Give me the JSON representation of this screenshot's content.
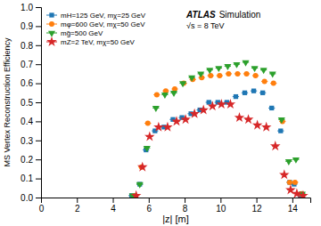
{
  "chart_data": {
    "type": "scatter",
    "xlabel": "|z| [m]",
    "ylabel": "MS Vertex Reconstruction Efficiency",
    "xlim": [
      0,
      15
    ],
    "ylim": [
      0,
      1
    ],
    "xticks": [
      0,
      2,
      4,
      6,
      8,
      10,
      12,
      14
    ],
    "yticks": [
      {
        "value": 0,
        "label": "0.0"
      },
      0.1,
      0.2,
      0.3,
      0.4,
      0.5,
      0.6,
      0.7,
      0.8,
      0.9,
      {
        "value": 1,
        "label": "1.0"
      }
    ],
    "xerr": 0.18,
    "legend": "upper left",
    "grid": false,
    "annotations": [
      "ATLAS",
      "Simulation",
      "√s = 8 TeV"
    ],
    "series": [
      {
        "name": "mH=125 GeV, mχ=25 GeV",
        "marker": "square",
        "x": [
          5.05,
          5.5,
          5.85,
          6.35,
          6.85,
          7.35,
          7.85,
          8.35,
          8.85,
          9.35,
          9.85,
          10.35,
          10.85,
          11.35,
          11.85,
          12.35,
          12.85,
          13.35,
          13.85,
          14.1,
          14.45
        ],
        "values": [
          0.01,
          0.07,
          0.25,
          0.35,
          0.37,
          0.41,
          0.42,
          0.44,
          0.46,
          0.5,
          0.5,
          0.5,
          0.53,
          0.55,
          0.56,
          0.55,
          0.47,
          0.35,
          0.08,
          0.07,
          0.01
        ]
      },
      {
        "name": "mφ=600 GeV, mχ=50 GeV",
        "marker": "circle",
        "x": [
          5.2,
          5.6,
          5.95,
          6.45,
          6.95,
          7.45,
          7.95,
          8.45,
          8.95,
          9.45,
          9.95,
          10.45,
          10.95,
          11.45,
          11.95,
          12.45,
          12.95,
          13.45,
          13.85,
          14.15,
          14.5
        ],
        "values": [
          0.01,
          0.16,
          0.39,
          0.54,
          0.56,
          0.57,
          0.6,
          0.62,
          0.63,
          0.64,
          0.64,
          0.65,
          0.65,
          0.65,
          0.64,
          0.61,
          0.6,
          0.4,
          0.08,
          0.08,
          0.02
        ]
      },
      {
        "name": "mg̃=500 GeV",
        "marker": "triangle-down",
        "x": [
          5.1,
          5.5,
          5.9,
          6.4,
          6.9,
          7.4,
          7.9,
          8.4,
          8.9,
          9.4,
          9.9,
          10.4,
          10.9,
          11.4,
          11.9,
          12.4,
          12.9,
          13.4,
          13.8,
          14.2,
          14.55
        ],
        "values": [
          0.01,
          0.07,
          0.26,
          0.47,
          0.54,
          0.55,
          0.6,
          0.63,
          0.65,
          0.67,
          0.68,
          0.69,
          0.7,
          0.71,
          0.68,
          0.67,
          0.65,
          0.41,
          0.19,
          0.2,
          0.02
        ]
      },
      {
        "name": "mZ=2 TeV, mχ=50 GeV",
        "marker": "star",
        "x": [
          5.3,
          5.65,
          6.05,
          6.55,
          7.05,
          7.55,
          8.05,
          8.55,
          9.05,
          9.55,
          10.05,
          10.55,
          11.05,
          11.55,
          12.05,
          12.55,
          13.05,
          13.55,
          13.9,
          14.25,
          14.6
        ],
        "values": [
          0.01,
          0.16,
          0.32,
          0.37,
          0.37,
          0.4,
          0.41,
          0.44,
          0.46,
          0.48,
          0.49,
          0.49,
          0.42,
          0.41,
          0.38,
          0.37,
          0.27,
          0.12,
          0.04,
          0.02,
          0.01
        ]
      }
    ]
  }
}
